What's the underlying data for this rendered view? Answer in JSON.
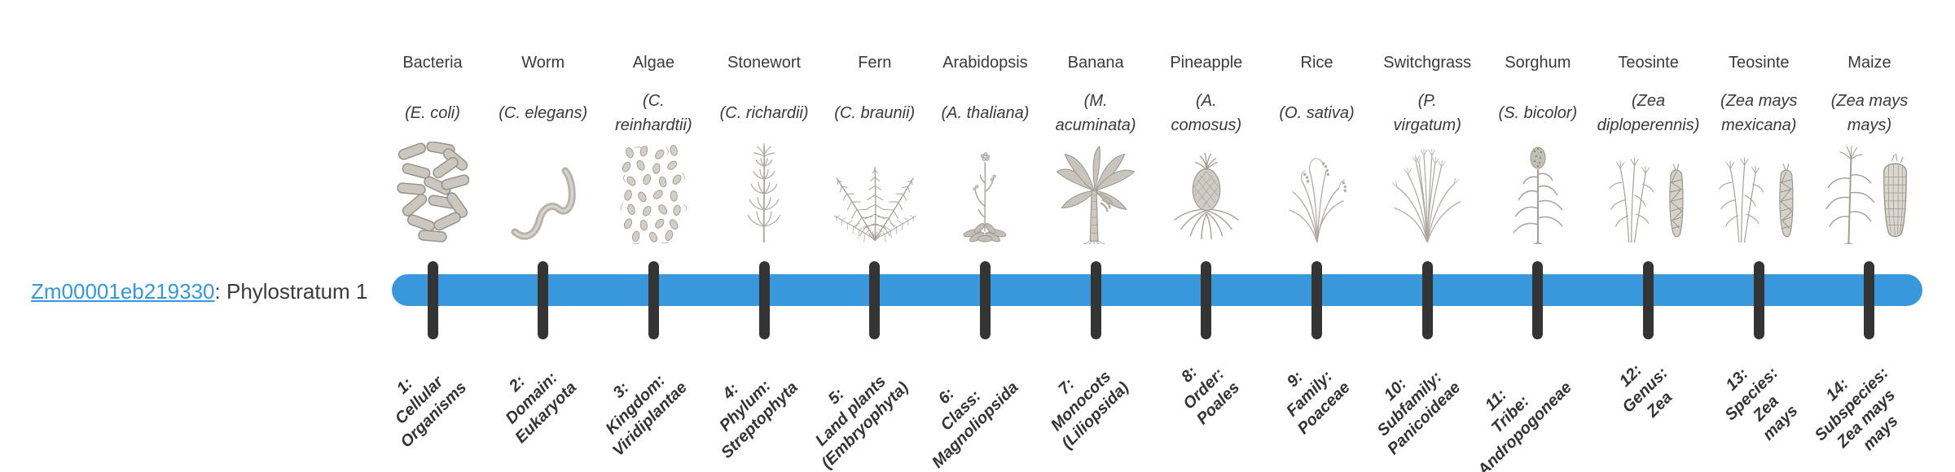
{
  "gene": {
    "id": "Zm00001eb219330",
    "suffix": ": Phylostratum 1"
  },
  "colors": {
    "bar": "#3898db",
    "tick": "#343434",
    "link": "#3597e0"
  },
  "chart_data": {
    "type": "table",
    "title": "Zm00001eb219330: Phylostratum 1",
    "x": [
      1,
      2,
      3,
      4,
      5,
      6,
      7,
      8,
      9,
      10,
      11,
      12,
      13,
      14
    ],
    "legend_position": "none",
    "notes": "Horizontal phylostratum timeline bar with 14 ticks; organism column above each tick, stratum name below"
  },
  "columns": [
    {
      "name": "Bacteria",
      "species": "(E. coli)",
      "icon": "bacteria-icon",
      "stratum": "1:\nCellular\nOrganisms"
    },
    {
      "name": "Worm",
      "species": "(C. elegans)",
      "icon": "worm-icon",
      "stratum": "2:\nDomain:\nEukaryota"
    },
    {
      "name": "Algae",
      "species": "(C.\nreinhardtii)",
      "icon": "algae-icon",
      "stratum": "3:\nKingdom:\nViridiplantae"
    },
    {
      "name": "Stonewort",
      "species": "(C. richardii)",
      "icon": "stonewort-icon",
      "stratum": "4:\nPhylum:\nStreptophyta"
    },
    {
      "name": "Fern",
      "species": "(C. braunii)",
      "icon": "fern-icon",
      "stratum": "5:\nLand plants\n(Embryophyta)"
    },
    {
      "name": "Arabidopsis",
      "species": "(A. thaliana)",
      "icon": "arabidopsis-icon",
      "stratum": "6:\nClass:\nMagnoliopsida"
    },
    {
      "name": "Banana",
      "species": "(M.\nacuminata)",
      "icon": "banana-icon",
      "stratum": "7:\nMonocots\n(Liliopsida)"
    },
    {
      "name": "Pineapple",
      "species": "(A.\ncomosus)",
      "icon": "pineapple-icon",
      "stratum": "8:\nOrder:\nPoales"
    },
    {
      "name": "Rice",
      "species": "(O. sativa)",
      "icon": "rice-icon",
      "stratum": "9:\nFamily:\nPoaceae"
    },
    {
      "name": "Switchgrass",
      "species": "(P.\nvirgatum)",
      "icon": "switchgrass-icon",
      "stratum": "10:\nSubfamily:\nPanicoideae"
    },
    {
      "name": "Sorghum",
      "species": "(S. bicolor)",
      "icon": "sorghum-icon",
      "stratum": "11:\nTribe:\nAndropogoneae"
    },
    {
      "name": "Teosinte",
      "species": "(Zea\ndiploperennis)",
      "icon": "teosinte-diploperennis-icon",
      "stratum": "12:\nGenus:\nZea"
    },
    {
      "name": "Teosinte",
      "species": "(Zea mays\nmexicana)",
      "icon": "teosinte-mexicana-icon",
      "stratum": "13:\nSpecies:\nZea\nmays"
    },
    {
      "name": "Maize",
      "species": "(Zea mays\nmays)",
      "icon": "maize-icon",
      "stratum": "14:\nSubspecies:\nZea mays\nmays"
    }
  ]
}
